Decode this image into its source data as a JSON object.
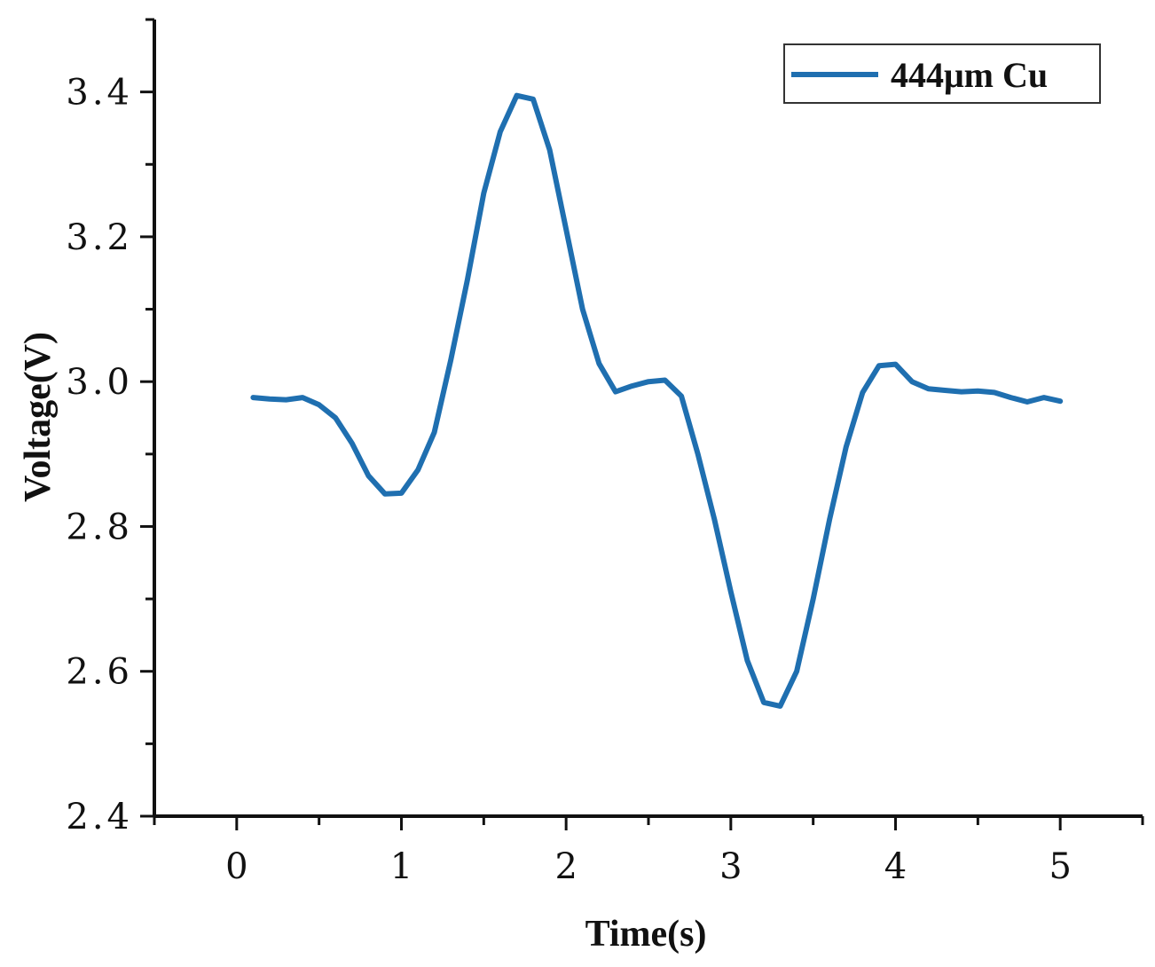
{
  "chart_data": {
    "type": "line",
    "title": "",
    "xlabel": "Time(s)",
    "ylabel": "Voltage(V)",
    "xlim": [
      -0.5,
      5.5
    ],
    "ylim": [
      2.4,
      3.5
    ],
    "x_ticks": [
      0,
      1,
      2,
      3,
      4,
      5
    ],
    "x_tick_labels": [
      "0",
      "1",
      "2",
      "3",
      "4",
      "5"
    ],
    "y_ticks": [
      2.4,
      2.6,
      2.8,
      3.0,
      3.2,
      3.4
    ],
    "y_tick_labels": [
      "2.4",
      "2.6",
      "2.8",
      "3.0",
      "3.2",
      "3.4"
    ],
    "grid": false,
    "legend_position": "top-right",
    "series": [
      {
        "name": "444μm Cu",
        "color": "#1f6fb0",
        "x": [
          0.1,
          0.2,
          0.3,
          0.4,
          0.5,
          0.6,
          0.7,
          0.8,
          0.9,
          1.0,
          1.1,
          1.2,
          1.3,
          1.4,
          1.5,
          1.6,
          1.7,
          1.8,
          1.9,
          2.0,
          2.1,
          2.2,
          2.3,
          2.4,
          2.5,
          2.6,
          2.7,
          2.8,
          2.9,
          3.0,
          3.1,
          3.2,
          3.3,
          3.4,
          3.5,
          3.6,
          3.7,
          3.8,
          3.9,
          4.0,
          4.1,
          4.2,
          4.3,
          4.4,
          4.5,
          4.6,
          4.7,
          4.8,
          4.9,
          5.0
        ],
        "values": [
          2.978,
          2.976,
          2.975,
          2.978,
          2.968,
          2.95,
          2.915,
          2.87,
          2.845,
          2.846,
          2.878,
          2.93,
          3.03,
          3.14,
          3.26,
          3.345,
          3.395,
          3.39,
          3.32,
          3.21,
          3.1,
          3.025,
          2.986,
          2.994,
          3.0,
          3.002,
          2.98,
          2.9,
          2.81,
          2.71,
          2.615,
          2.557,
          2.552,
          2.6,
          2.7,
          2.81,
          2.91,
          2.985,
          3.022,
          3.024,
          3.0,
          2.99,
          2.988,
          2.986,
          2.987,
          2.985,
          2.978,
          2.972,
          2.978,
          2.973
        ]
      }
    ]
  }
}
